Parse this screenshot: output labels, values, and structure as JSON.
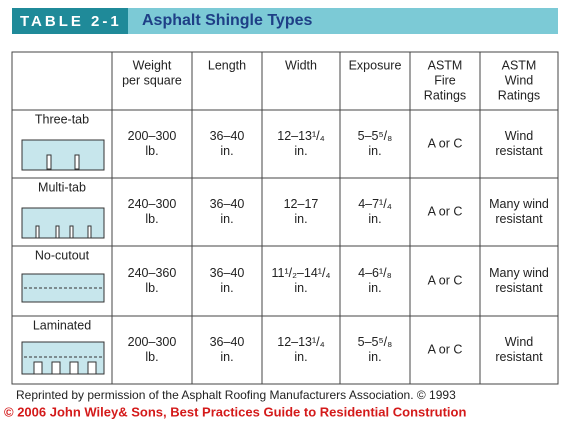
{
  "header": {
    "label": "TABLE 2-1",
    "title": "Asphalt Shingle Types"
  },
  "table": {
    "columns": [
      [
        "Weight",
        "per square"
      ],
      [
        "Length"
      ],
      [
        "Width"
      ],
      [
        "Exposure"
      ],
      [
        "ASTM",
        "Fire",
        "Ratings"
      ],
      [
        "ASTM",
        "Wind",
        "Ratings"
      ]
    ],
    "rows": [
      {
        "name": "Three-tab",
        "cells": [
          [
            "200–300",
            "lb."
          ],
          [
            "36–40",
            "in."
          ],
          [
            "12–13¹/₄",
            "in."
          ],
          [
            "5–5⁵/₈",
            "in."
          ],
          [
            "A or C"
          ],
          [
            "Wind",
            "resistant"
          ]
        ]
      },
      {
        "name": "Multi-tab",
        "cells": [
          [
            "240–300",
            "lb."
          ],
          [
            "36–40",
            "in."
          ],
          [
            "12–17",
            "in."
          ],
          [
            "4–7¹/₄",
            "in."
          ],
          [
            "A or C"
          ],
          [
            "Many wind",
            "resistant"
          ]
        ]
      },
      {
        "name": "No-cutout",
        "cells": [
          [
            "240–360",
            "lb."
          ],
          [
            "36–40",
            "in."
          ],
          [
            "11¹/₂–14¹/₄",
            "in."
          ],
          [
            "4–6¹/₈",
            "in."
          ],
          [
            "A or C"
          ],
          [
            "Many wind",
            "resistant"
          ]
        ]
      },
      {
        "name": "Laminated",
        "cells": [
          [
            "200–300",
            "lb."
          ],
          [
            "36–40",
            "in."
          ],
          [
            "12–13¹/₄",
            "in."
          ],
          [
            "5–5⁵/₈",
            "in."
          ],
          [
            "A or C"
          ],
          [
            "Wind",
            "resistant"
          ]
        ]
      }
    ]
  },
  "footer": {
    "note": "Reprinted by permission of the Asphalt Roofing Manufacturers Association. © 1993",
    "copyright": "© 2006 John Wiley& Sons, Best Practices Guide to Residential Constrution"
  }
}
